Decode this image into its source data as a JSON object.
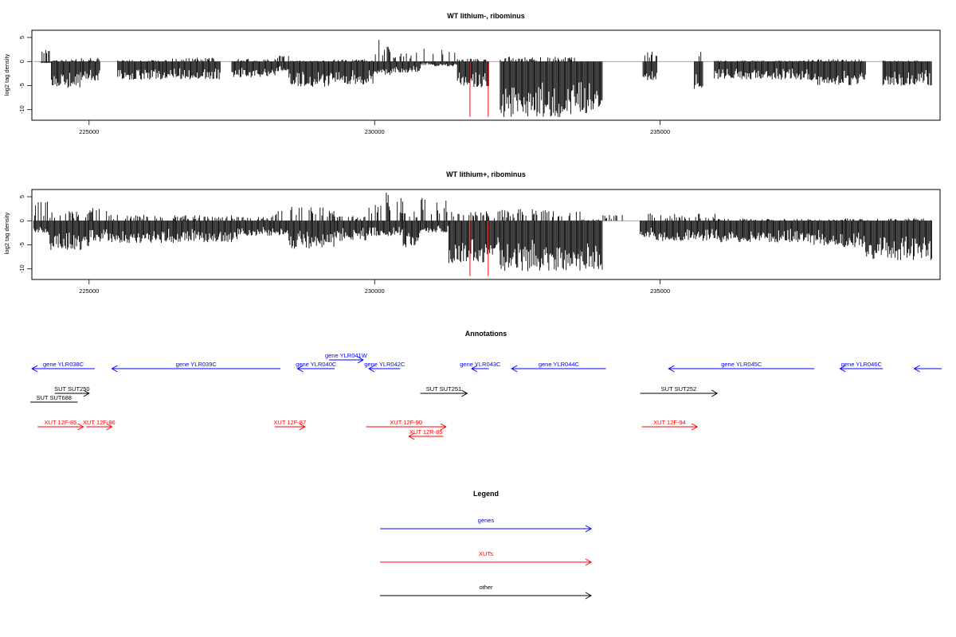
{
  "colors": {
    "genes": "#0000ff",
    "xuts": "#ff0000",
    "other": "#000000",
    "signal": "#000000",
    "highlight": "#ff0000"
  },
  "chart_data": [
    {
      "type": "bar",
      "title": "WT lithium-, ribominus",
      "ylabel": "log2 tag density",
      "xlim": [
        223998,
        239902
      ],
      "ylim": [
        -12.2,
        6.5
      ],
      "yticks": [
        5,
        0,
        -5,
        -10
      ],
      "xticks": [
        225000,
        230000,
        235000
      ],
      "xtick_labels": [
        "225000",
        "230000",
        "235000"
      ],
      "highlight_positions": [
        231670,
        231990
      ],
      "highlight_depth": -11.5,
      "segments": [
        {
          "start": 224160,
          "end": 224340,
          "max": 2.6,
          "min": -0.4
        },
        {
          "start": 224340,
          "end": 224850,
          "max": 0.5,
          "min": -5.5
        },
        {
          "start": 224850,
          "end": 225200,
          "max": 0.8,
          "min": -4.0
        },
        {
          "start": 225500,
          "end": 226300,
          "max": 0.3,
          "min": -3.8
        },
        {
          "start": 226300,
          "end": 227300,
          "max": 0.8,
          "min": -3.7
        },
        {
          "start": 227500,
          "end": 228300,
          "max": 0.6,
          "min": -3.3
        },
        {
          "start": 228300,
          "end": 228500,
          "max": 1.2,
          "min": -2.0
        },
        {
          "start": 228500,
          "end": 229200,
          "max": 0.2,
          "min": -5.3
        },
        {
          "start": 229200,
          "end": 229980,
          "max": 0.5,
          "min": -4.8
        },
        {
          "start": 229980,
          "end": 230300,
          "max": 4.8,
          "min": -2.8
        },
        {
          "start": 230300,
          "end": 230800,
          "max": 2.0,
          "min": -2.4
        },
        {
          "start": 230800,
          "end": 231050,
          "max": 3.8,
          "min": -0.8
        },
        {
          "start": 231050,
          "end": 231450,
          "max": 2.5,
          "min": -1.0
        },
        {
          "start": 231450,
          "end": 232000,
          "max": 0.6,
          "min": -5.5
        },
        {
          "start": 232200,
          "end": 233600,
          "max": 1.0,
          "min": -11.6
        },
        {
          "start": 233600,
          "end": 234000,
          "max": 0.0,
          "min": -11.0
        },
        {
          "start": 234700,
          "end": 234950,
          "max": 2.4,
          "min": -4.0
        },
        {
          "start": 235600,
          "end": 235750,
          "max": 2.2,
          "min": -5.7
        },
        {
          "start": 235950,
          "end": 237600,
          "max": 0.2,
          "min": -3.8
        },
        {
          "start": 237600,
          "end": 238600,
          "max": 0.5,
          "min": -4.9
        },
        {
          "start": 238900,
          "end": 239760,
          "max": 0.2,
          "min": -5.0
        }
      ]
    },
    {
      "type": "bar",
      "title": "WT lithium+, ribominus",
      "ylabel": "log2 tag density",
      "xlim": [
        223998,
        239902
      ],
      "ylim": [
        -12.2,
        6.5
      ],
      "yticks": [
        5,
        0,
        -5,
        -10
      ],
      "xticks": [
        225000,
        230000,
        235000
      ],
      "xtick_labels": [
        "225000",
        "230000",
        "235000"
      ],
      "highlight_positions": [
        231670,
        231990
      ],
      "highlight_depth": -11.5,
      "segments": [
        {
          "start": 224030,
          "end": 224300,
          "max": 4.0,
          "min": -2.5
        },
        {
          "start": 224300,
          "end": 225000,
          "max": 2.0,
          "min": -6.2
        },
        {
          "start": 225000,
          "end": 225350,
          "max": 3.0,
          "min": -4.5
        },
        {
          "start": 225350,
          "end": 226500,
          "max": 1.3,
          "min": -4.6
        },
        {
          "start": 226500,
          "end": 227600,
          "max": 1.2,
          "min": -4.5
        },
        {
          "start": 227600,
          "end": 228200,
          "max": 0.8,
          "min": -3.2
        },
        {
          "start": 228200,
          "end": 228500,
          "max": 2.5,
          "min": -3.0
        },
        {
          "start": 228500,
          "end": 229300,
          "max": 3.0,
          "min": -5.8
        },
        {
          "start": 229300,
          "end": 229900,
          "max": 1.0,
          "min": -4.2
        },
        {
          "start": 229900,
          "end": 230500,
          "max": 6.0,
          "min": -3.2
        },
        {
          "start": 230500,
          "end": 230800,
          "max": 2.5,
          "min": -5.5
        },
        {
          "start": 230800,
          "end": 231300,
          "max": 5.5,
          "min": -2.5
        },
        {
          "start": 231300,
          "end": 232000,
          "max": 2.0,
          "min": -9.0
        },
        {
          "start": 232000,
          "end": 232200,
          "max": 2.0,
          "min": -7.0
        },
        {
          "start": 232200,
          "end": 233600,
          "max": 2.5,
          "min": -10.5
        },
        {
          "start": 233600,
          "end": 234000,
          "max": 0.5,
          "min": -10.2
        },
        {
          "start": 234000,
          "end": 234350,
          "max": 1.3,
          "min": 0.0
        },
        {
          "start": 234650,
          "end": 234900,
          "max": 3.0,
          "min": -3.5
        },
        {
          "start": 234900,
          "end": 236000,
          "max": 1.5,
          "min": -4.2
        },
        {
          "start": 236000,
          "end": 237600,
          "max": 0.5,
          "min": -4.5
        },
        {
          "start": 237600,
          "end": 238200,
          "max": 0.3,
          "min": -5.2
        },
        {
          "start": 238200,
          "end": 238600,
          "max": 0.5,
          "min": -5.5
        },
        {
          "start": 238600,
          "end": 239760,
          "max": 0.5,
          "min": -8.2
        }
      ]
    }
  ],
  "annotations": {
    "title": "Annotations",
    "genes": [
      {
        "label": "gene YLR038C",
        "start": 224000,
        "end": 225100,
        "strand": "-",
        "lane": 1
      },
      {
        "label": "gene YLR039C",
        "start": 225400,
        "end": 228350,
        "strand": "-",
        "lane": 1
      },
      {
        "label": "gene YLR040C",
        "start": 228650,
        "end": 229300,
        "strand": "-",
        "lane": 1
      },
      {
        "label": "gene YLR041W",
        "start": 229200,
        "end": 229800,
        "strand": "+",
        "lane": 0
      },
      {
        "label": "gene YLR042C",
        "start": 229900,
        "end": 230450,
        "strand": "-",
        "lane": 1
      },
      {
        "label": "gene YLR043C",
        "start": 231700,
        "end": 232000,
        "strand": "-",
        "lane": 1
      },
      {
        "label": "gene YLR044C",
        "start": 232400,
        "end": 234050,
        "strand": "-",
        "lane": 1
      },
      {
        "label": "gene YLR045C",
        "start": 235150,
        "end": 237700,
        "strand": "-",
        "lane": 1
      },
      {
        "label": "gene YLR046C",
        "start": 238150,
        "end": 238900,
        "strand": "-",
        "lane": 1
      },
      {
        "label": "",
        "start": 239450,
        "end": 240000,
        "strand": "-",
        "lane": 1
      }
    ],
    "xuts": [
      {
        "label": "XUT 12F-85",
        "start": 224100,
        "end": 224900,
        "strand": "+",
        "lane": 0
      },
      {
        "label": "XUT 12F-86",
        "start": 224950,
        "end": 225400,
        "strand": "+",
        "lane": 0
      },
      {
        "label": "XUT 12F-87",
        "start": 228250,
        "end": 228780,
        "strand": "+",
        "lane": 0
      },
      {
        "label": "XUT 12F-90",
        "start": 229850,
        "end": 231250,
        "strand": "+",
        "lane": 0
      },
      {
        "label": "XUT 12R-85",
        "start": 230600,
        "end": 231200,
        "strand": "-",
        "lane": 1
      },
      {
        "label": "XUT 12F-94",
        "start": 234680,
        "end": 235650,
        "strand": "+",
        "lane": 0
      }
    ],
    "other": [
      {
        "label": "SUT SUT250",
        "start": 224400,
        "end": 225000,
        "strand": "+",
        "lane": 0
      },
      {
        "label": "SUT SUT688",
        "start": 223900,
        "end": 224800,
        "strand": "",
        "lane": 1
      },
      {
        "label": "SUT SUT251",
        "start": 230800,
        "end": 231620,
        "strand": "+",
        "lane": 0
      },
      {
        "label": "SUT SUT252",
        "start": 234650,
        "end": 236000,
        "strand": "+",
        "lane": 0
      }
    ]
  },
  "legend": {
    "title": "Legend",
    "items": [
      {
        "label": "genes",
        "color": "#0000ff"
      },
      {
        "label": "XUTs",
        "color": "#ff0000"
      },
      {
        "label": "other",
        "color": "#000000"
      }
    ]
  }
}
